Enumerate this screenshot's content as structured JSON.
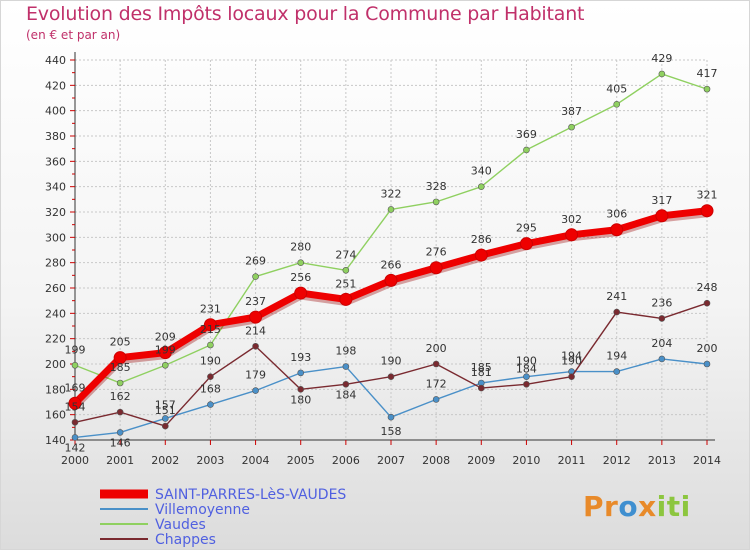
{
  "header": {
    "title": "Evolution des Impôts locaux pour la Commune par Habitant",
    "subtitle": "(en € et par an)"
  },
  "logo": {
    "text": "Proxiti",
    "colors": [
      "#e88a2a",
      "#3f8fd0",
      "#8cc63f"
    ]
  },
  "chart_data": {
    "type": "line",
    "title": "Evolution des Impôts locaux pour la Commune par Habitant",
    "subtitle": "(en € et par an)",
    "x": [
      "2000",
      "2001",
      "2002",
      "2003",
      "2004",
      "2005",
      "2006",
      "2007",
      "2008",
      "2009",
      "2010",
      "2011",
      "2012",
      "2013",
      "2014"
    ],
    "ylim": [
      140,
      440
    ],
    "yticks": [
      140,
      160,
      180,
      200,
      220,
      240,
      260,
      280,
      300,
      320,
      340,
      360,
      380,
      400,
      420,
      440
    ],
    "grid": true,
    "legend": "bottom-left",
    "series": [
      {
        "name": "SAINT-PARRES-LèS-VAUDES",
        "color": "#ee0000",
        "width": "thick",
        "values": [
          169,
          205,
          209,
          231,
          237,
          256,
          251,
          266,
          276,
          286,
          295,
          302,
          306,
          317,
          321
        ]
      },
      {
        "name": "Villemoyenne",
        "color": "#4a90c8",
        "width": "thin",
        "values": [
          142,
          146,
          157,
          168,
          179,
          193,
          198,
          158,
          172,
          185,
          190,
          194,
          194,
          204,
          200
        ]
      },
      {
        "name": "Vaudes",
        "color": "#8fd060",
        "width": "thin",
        "values": [
          199,
          185,
          199,
          215,
          269,
          280,
          274,
          322,
          328,
          340,
          369,
          387,
          405,
          429,
          417
        ]
      },
      {
        "name": "Chappes",
        "color": "#7a2a30",
        "width": "thin",
        "values": [
          154,
          162,
          151,
          190,
          214,
          180,
          184,
          190,
          200,
          181,
          184,
          190,
          241,
          236,
          248
        ]
      }
    ]
  }
}
